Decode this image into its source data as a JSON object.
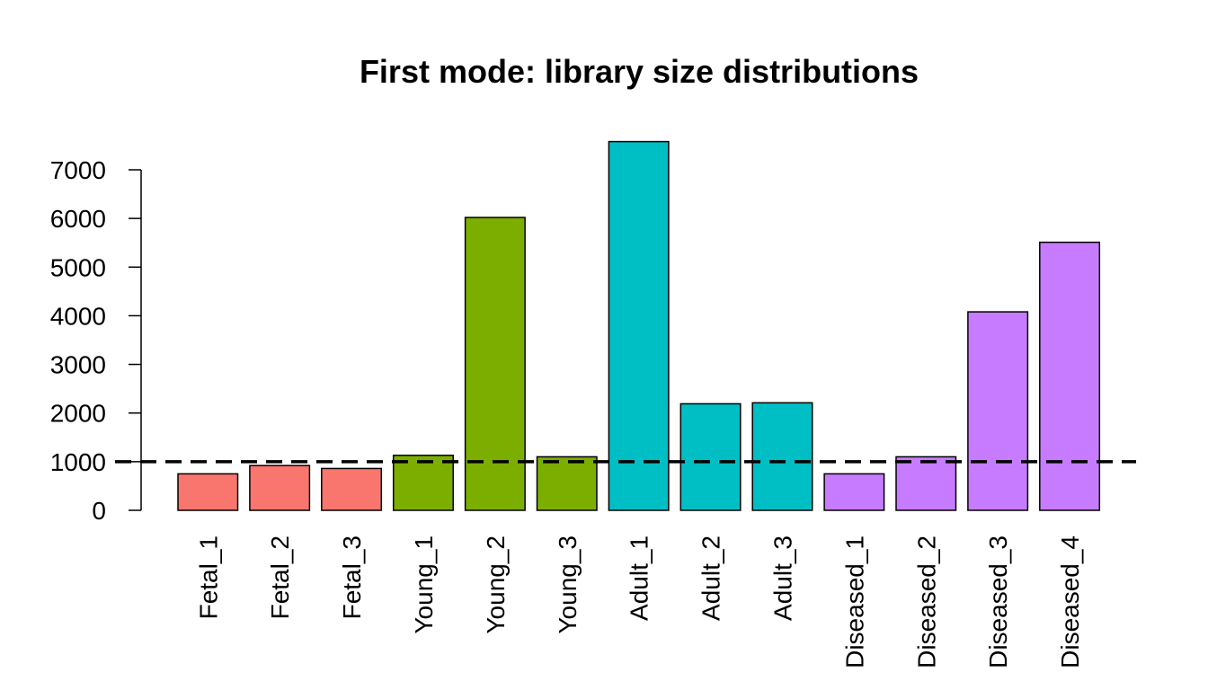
{
  "chart_data": {
    "type": "bar",
    "title": "First mode: library size distributions",
    "xlabel": "",
    "ylabel": "",
    "categories": [
      "Fetal_1",
      "Fetal_2",
      "Fetal_3",
      "Young_1",
      "Young_2",
      "Young_3",
      "Adult_1",
      "Adult_2",
      "Adult_3",
      "Diseased_1",
      "Diseased_2",
      "Diseased_3",
      "Diseased_4"
    ],
    "values": [
      750,
      920,
      860,
      1130,
      6020,
      1100,
      7580,
      2190,
      2210,
      750,
      1100,
      4080,
      5510
    ],
    "groups": [
      "Fetal",
      "Fetal",
      "Fetal",
      "Young",
      "Young",
      "Young",
      "Adult",
      "Adult",
      "Adult",
      "Diseased",
      "Diseased",
      "Diseased",
      "Diseased"
    ],
    "group_colors": {
      "Fetal": "#F8766D",
      "Young": "#7CAE00",
      "Adult": "#00BFC4",
      "Diseased": "#C77CFF"
    },
    "yticks": [
      0,
      1000,
      2000,
      3000,
      4000,
      5000,
      6000,
      7000
    ],
    "ytick_labels": [
      "0",
      "1000",
      "2000",
      "3000",
      "4000",
      "5000",
      "6000",
      "7000"
    ],
    "reference_line": {
      "y": 1000,
      "style": "dashed"
    },
    "grid": false,
    "legend": "none"
  }
}
